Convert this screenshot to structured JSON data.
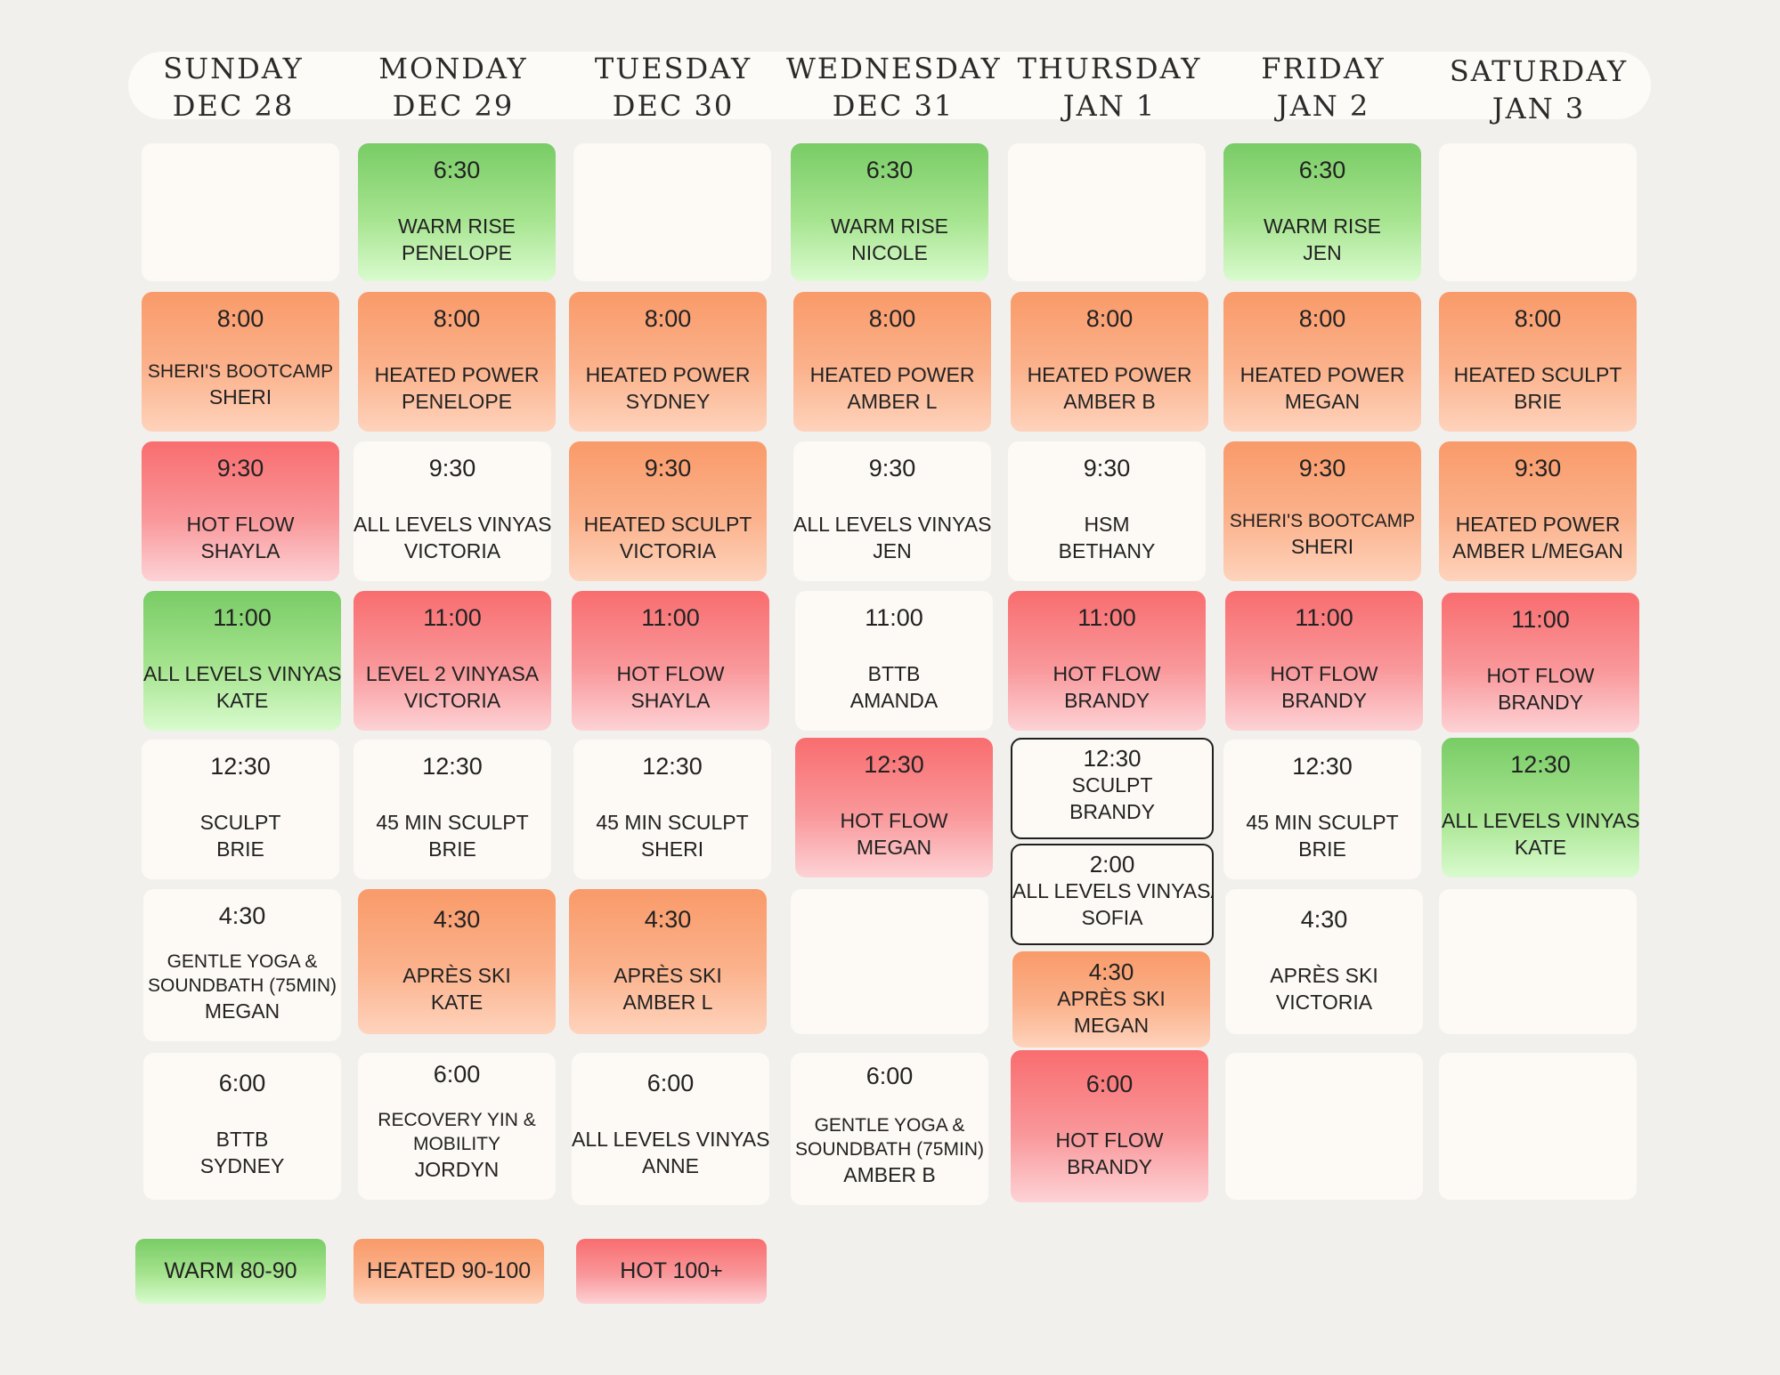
{
  "days": [
    {
      "name": "SUNDAY",
      "date": "DEC 28"
    },
    {
      "name": "MONDAY",
      "date": "DEC 29"
    },
    {
      "name": "TUESDAY",
      "date": "DEC 30"
    },
    {
      "name": "WEDNESDAY",
      "date": "DEC 31"
    },
    {
      "name": "THURSDAY",
      "date": "JAN 1"
    },
    {
      "name": "FRIDAY",
      "date": "JAN 2"
    },
    {
      "name": "SATURDAY",
      "date": "JAN 3"
    }
  ],
  "schedule": {
    "sun": {
      "c1": {
        "time": "8:00",
        "cls": "SHERI'S BOOTCAMP",
        "inst": "SHERI"
      },
      "c2": {
        "time": "9:30",
        "cls": "HOT FLOW",
        "inst": "SHAYLA"
      },
      "c3": {
        "time": "11:00",
        "cls": "ALL LEVELS VINYASA",
        "inst": "KATE"
      },
      "c4": {
        "time": "12:30",
        "cls": "SCULPT",
        "inst": "BRIE"
      },
      "c5": {
        "time": "4:30",
        "cls": "GENTLE YOGA &",
        "cls2": "SOUNDBATH (75MIN)",
        "inst": "MEGAN"
      },
      "c6": {
        "time": "6:00",
        "cls": "BTTB",
        "inst": "SYDNEY"
      }
    },
    "mon": {
      "c0": {
        "time": "6:30",
        "cls": "WARM RISE",
        "inst": "PENELOPE"
      },
      "c1": {
        "time": "8:00",
        "cls": "HEATED POWER",
        "inst": "PENELOPE"
      },
      "c2": {
        "time": "9:30",
        "cls": "ALL LEVELS VINYASA",
        "inst": "VICTORIA"
      },
      "c3": {
        "time": "11:00",
        "cls": "LEVEL 2 VINYASA",
        "inst": "VICTORIA"
      },
      "c4": {
        "time": "12:30",
        "cls": "45 MIN SCULPT",
        "inst": "BRIE"
      },
      "c5": {
        "time": "4:30",
        "cls": "APRÈS SKI",
        "inst": "KATE"
      },
      "c6": {
        "time": "6:00",
        "cls": "RECOVERY YIN &",
        "cls2": "MOBILITY",
        "inst": "JORDYN"
      }
    },
    "tue": {
      "c1": {
        "time": "8:00",
        "cls": "HEATED POWER",
        "inst": "SYDNEY"
      },
      "c2": {
        "time": "9:30",
        "cls": "HEATED SCULPT",
        "inst": "VICTORIA"
      },
      "c3": {
        "time": "11:00",
        "cls": "HOT FLOW",
        "inst": "SHAYLA"
      },
      "c4": {
        "time": "12:30",
        "cls": "45 MIN SCULPT",
        "inst": "SHERI"
      },
      "c5": {
        "time": "4:30",
        "cls": "APRÈS SKI",
        "inst": "AMBER L"
      },
      "c6": {
        "time": "6:00",
        "cls": "ALL LEVELS VINYASA",
        "inst": "ANNE"
      }
    },
    "wed": {
      "c0": {
        "time": "6:30",
        "cls": "WARM RISE",
        "inst": "NICOLE"
      },
      "c1": {
        "time": "8:00",
        "cls": "HEATED POWER",
        "inst": "AMBER L"
      },
      "c2": {
        "time": "9:30",
        "cls": "ALL LEVELS VINYASA",
        "inst": "JEN"
      },
      "c3": {
        "time": "11:00",
        "cls": "BTTB",
        "inst": "AMANDA"
      },
      "c4": {
        "time": "12:30",
        "cls": "HOT FLOW",
        "inst": "MEGAN"
      },
      "c6": {
        "time": "6:00",
        "cls": "GENTLE YOGA &",
        "cls2": "SOUNDBATH (75MIN)",
        "inst": "AMBER B"
      }
    },
    "thu": {
      "c1": {
        "time": "8:00",
        "cls": "HEATED POWER",
        "inst": "AMBER B"
      },
      "c2": {
        "time": "9:30",
        "cls": "HSM",
        "inst": "BETHANY"
      },
      "c3": {
        "time": "11:00",
        "cls": "HOT FLOW",
        "inst": "BRANDY"
      },
      "c4a": {
        "time": "12:30",
        "cls": "SCULPT",
        "inst": "BRANDY"
      },
      "c4b": {
        "time": "2:00",
        "cls": "ALL LEVELS VINYASA",
        "inst": "SOFIA"
      },
      "c5": {
        "time": "4:30",
        "cls": "APRÈS SKI",
        "inst": "MEGAN"
      },
      "c6": {
        "time": "6:00",
        "cls": "HOT FLOW",
        "inst": "BRANDY"
      }
    },
    "fri": {
      "c0": {
        "time": "6:30",
        "cls": "WARM RISE",
        "inst": "JEN"
      },
      "c1": {
        "time": "8:00",
        "cls": "HEATED POWER",
        "inst": "MEGAN"
      },
      "c2": {
        "time": "9:30",
        "cls": "SHERI'S BOOTCAMP",
        "inst": "SHERI"
      },
      "c3": {
        "time": "11:00",
        "cls": "HOT FLOW",
        "inst": "BRANDY"
      },
      "c4": {
        "time": "12:30",
        "cls": "45 MIN SCULPT",
        "inst": "BRIE"
      },
      "c5": {
        "time": "4:30",
        "cls": "APRÈS SKI",
        "inst": "VICTORIA"
      }
    },
    "sat": {
      "c1": {
        "time": "8:00",
        "cls": "HEATED SCULPT",
        "inst": "BRIE"
      },
      "c2": {
        "time": "9:30",
        "cls": "HEATED POWER",
        "inst": "AMBER L/MEGAN"
      },
      "c3": {
        "time": "11:00",
        "cls": "HOT FLOW",
        "inst": "BRANDY"
      },
      "c4": {
        "time": "12:30",
        "cls": "ALL LEVELS VINYASA",
        "inst": "KATE"
      }
    }
  },
  "legend": {
    "warm": "WARM 80-90",
    "heated": "HEATED 90-100",
    "hot": "HOT 100+"
  },
  "colors": {
    "background": "#f2f0ed",
    "card": "#fdfaf5",
    "warm": "#79cc66",
    "heated": "#f99a69",
    "hot": "#f96d6f"
  }
}
